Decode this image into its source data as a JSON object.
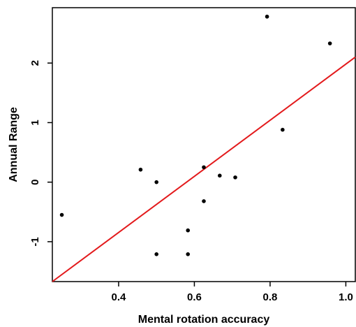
{
  "chart_data": {
    "type": "scatter",
    "xlabel": "Mental rotation accuracy",
    "ylabel": "Annual Range",
    "xlim": [
      0.225,
      1.025
    ],
    "ylim": [
      -1.67,
      2.93
    ],
    "x_ticks": [
      0.4,
      0.6,
      0.8,
      1.0
    ],
    "x_tick_labels": [
      "0.4",
      "0.6",
      "0.8",
      "1.0"
    ],
    "y_ticks": [
      -1,
      0,
      1,
      2
    ],
    "y_tick_labels": [
      "-1",
      "0",
      "1",
      "2"
    ],
    "grid": false,
    "points": [
      {
        "x": 0.25,
        "y": -0.55
      },
      {
        "x": 0.458,
        "y": 0.21
      },
      {
        "x": 0.5,
        "y": 0.0
      },
      {
        "x": 0.5,
        "y": -1.21
      },
      {
        "x": 0.583,
        "y": -0.81
      },
      {
        "x": 0.583,
        "y": -1.21
      },
      {
        "x": 0.625,
        "y": 0.25
      },
      {
        "x": 0.625,
        "y": -0.32
      },
      {
        "x": 0.667,
        "y": 0.11
      },
      {
        "x": 0.708,
        "y": 0.08
      },
      {
        "x": 0.792,
        "y": 2.78
      },
      {
        "x": 0.833,
        "y": 0.88
      },
      {
        "x": 0.958,
        "y": 2.33
      }
    ],
    "fit_line": {
      "color": "#e31a1c",
      "from": {
        "x": 0.225,
        "y": -1.67
      },
      "to": {
        "x": 1.025,
        "y": 2.1
      }
    },
    "point_color": "#000000"
  }
}
